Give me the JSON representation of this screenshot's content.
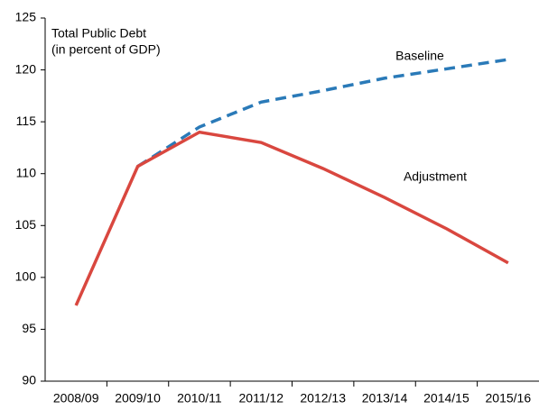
{
  "chart_data": {
    "type": "line",
    "title": "Total Public Debt",
    "subtitle": "(in percent of GDP)",
    "categories": [
      "2008/09",
      "2009/10",
      "2010/11",
      "2011/12",
      "2012/13",
      "2013/14",
      "2014/15",
      "2015/16"
    ],
    "series": [
      {
        "name": "Baseline",
        "color": "#2a7ab8",
        "dash": true,
        "values": [
          null,
          110.7,
          114.5,
          116.9,
          118.0,
          119.2,
          120.1,
          121.0
        ]
      },
      {
        "name": "Adjustment",
        "color": "#d9473f",
        "dash": false,
        "values": [
          97.3,
          110.7,
          114.0,
          113.0,
          110.5,
          107.7,
          104.7,
          101.4
        ]
      }
    ],
    "ylim": [
      90,
      125
    ],
    "yticks": [
      90,
      95,
      100,
      105,
      110,
      115,
      120,
      125
    ],
    "grid": false
  }
}
